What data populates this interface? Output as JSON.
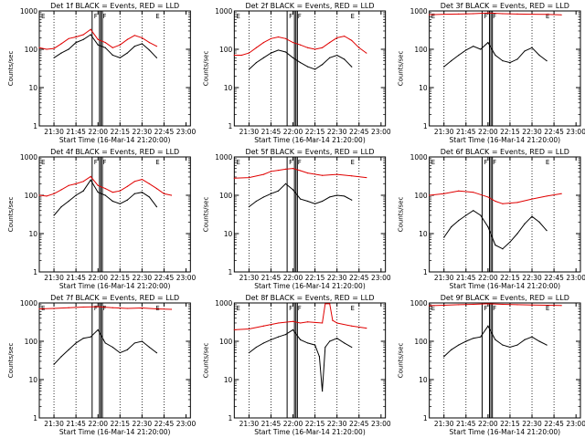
{
  "chart_data": [
    {
      "type": "line",
      "title": "Det 1f BLACK = Events, RED = LLD",
      "xlabel": "Start Time (16-Mar-14 21:20:00)",
      "ylabel": "Counts/sec",
      "y_scale": "log",
      "ylim": [
        1,
        1000
      ],
      "y_ticks": [
        "1",
        "10",
        "100",
        "1000"
      ],
      "x_ticks": [
        "21:30",
        "21:45",
        "22:00",
        "22:15",
        "22:30",
        "22:45",
        "23:00"
      ],
      "markers": [
        "E",
        "F",
        "F",
        "E"
      ],
      "series": [
        {
          "name": "BLACK",
          "color": "#000000",
          "x": [
            "21:30",
            "21:35",
            "21:40",
            "21:45",
            "21:50",
            "21:55",
            "22:00",
            "22:05",
            "22:10",
            "22:15",
            "22:20",
            "22:25",
            "22:30",
            "22:35",
            "22:40"
          ],
          "values": [
            60,
            80,
            100,
            150,
            180,
            240,
            130,
            110,
            70,
            60,
            80,
            120,
            140,
            95,
            60
          ]
        },
        {
          "name": "RED",
          "color": "#e00000",
          "x": [
            "21:20",
            "21:25",
            "21:30",
            "21:35",
            "21:40",
            "21:45",
            "21:50",
            "21:55",
            "22:00",
            "22:05",
            "22:10",
            "22:15",
            "22:20",
            "22:25",
            "22:30",
            "22:35",
            "22:40"
          ],
          "values": [
            110,
            100,
            105,
            140,
            190,
            210,
            240,
            330,
            180,
            150,
            110,
            130,
            180,
            230,
            200,
            150,
            120
          ]
        }
      ]
    },
    {
      "type": "line",
      "title": "Det 2f BLACK = Events, RED = LLD",
      "xlabel": "Start Time (16-Mar-14 21:20:00)",
      "ylabel": "Counts/sec",
      "y_scale": "log",
      "ylim": [
        1,
        1000
      ],
      "y_ticks": [
        "1",
        "10",
        "100",
        "1000"
      ],
      "x_ticks": [
        "21:30",
        "21:45",
        "22:00",
        "22:15",
        "22:30",
        "22:45",
        "23:00"
      ],
      "markers": [
        "E",
        "F",
        "F",
        "E"
      ],
      "series": [
        {
          "name": "BLACK",
          "color": "#000000",
          "x": [
            "21:30",
            "21:35",
            "21:40",
            "21:45",
            "21:50",
            "21:55",
            "22:00",
            "22:05",
            "22:10",
            "22:15",
            "22:20",
            "22:25",
            "22:30",
            "22:35",
            "22:40"
          ],
          "values": [
            30,
            45,
            60,
            80,
            95,
            85,
            60,
            45,
            35,
            30,
            40,
            60,
            70,
            55,
            35
          ]
        },
        {
          "name": "RED",
          "color": "#e00000",
          "x": [
            "21:20",
            "21:25",
            "21:30",
            "21:35",
            "21:40",
            "21:45",
            "21:50",
            "21:55",
            "22:00",
            "22:05",
            "22:10",
            "22:15",
            "22:20",
            "22:25",
            "22:30",
            "22:35",
            "22:40",
            "22:45",
            "22:50"
          ],
          "values": [
            70,
            70,
            80,
            110,
            150,
            190,
            210,
            190,
            150,
            130,
            110,
            100,
            110,
            150,
            200,
            220,
            170,
            110,
            80
          ]
        }
      ]
    },
    {
      "type": "line",
      "title": "Det 3f BLACK = Events, RED = LLD",
      "xlabel": "Start Time (16-Mar-14 21:20:00)",
      "ylabel": "Counts/sec",
      "y_scale": "log",
      "ylim": [
        1,
        1000
      ],
      "y_ticks": [
        "1",
        "10",
        "100",
        "1000"
      ],
      "x_ticks": [
        "21:30",
        "21:45",
        "22:00",
        "22:15",
        "22:30",
        "22:45",
        "23:00"
      ],
      "markers": [
        "E",
        "F",
        "F",
        "E"
      ],
      "series": [
        {
          "name": "BLACK",
          "color": "#000000",
          "x": [
            "21:30",
            "21:35",
            "21:40",
            "21:45",
            "21:50",
            "21:55",
            "22:00",
            "22:05",
            "22:10",
            "22:15",
            "22:20",
            "22:25",
            "22:30",
            "22:35",
            "22:40"
          ],
          "values": [
            35,
            50,
            70,
            95,
            120,
            100,
            150,
            70,
            50,
            45,
            55,
            90,
            110,
            70,
            50
          ]
        },
        {
          "name": "RED",
          "color": "#e00000",
          "x": [
            "21:20",
            "21:30",
            "21:40",
            "21:50",
            "22:00",
            "22:10",
            "22:20",
            "22:30",
            "22:40",
            "22:50"
          ],
          "values": [
            800,
            820,
            830,
            850,
            880,
            850,
            830,
            820,
            810,
            790
          ]
        }
      ]
    },
    {
      "type": "line",
      "title": "Det 4f BLACK = Events, RED = LLD",
      "xlabel": "Start Time (16-Mar-14 21:20:00)",
      "ylabel": "Counts/sec",
      "y_scale": "log",
      "ylim": [
        1,
        1000
      ],
      "y_ticks": [
        "1",
        "10",
        "100",
        "1000"
      ],
      "x_ticks": [
        "21:30",
        "21:45",
        "22:00",
        "22:15",
        "22:30",
        "22:45",
        "23:00"
      ],
      "markers": [
        "E",
        "F",
        "F",
        "E"
      ],
      "series": [
        {
          "name": "BLACK",
          "color": "#000000",
          "x": [
            "21:30",
            "21:35",
            "21:40",
            "21:45",
            "21:50",
            "21:55",
            "22:00",
            "22:05",
            "22:10",
            "22:15",
            "22:20",
            "22:25",
            "22:30",
            "22:35",
            "22:40"
          ],
          "values": [
            30,
            50,
            70,
            100,
            130,
            250,
            120,
            100,
            70,
            60,
            75,
            110,
            120,
            90,
            50
          ]
        },
        {
          "name": "RED",
          "color": "#e00000",
          "x": [
            "21:20",
            "21:25",
            "21:30",
            "21:35",
            "21:40",
            "21:45",
            "21:50",
            "21:55",
            "22:00",
            "22:05",
            "22:10",
            "22:15",
            "22:20",
            "22:25",
            "22:30",
            "22:35",
            "22:40",
            "22:45",
            "22:50"
          ],
          "values": [
            100,
            95,
            110,
            140,
            180,
            200,
            230,
            310,
            180,
            150,
            120,
            130,
            170,
            230,
            260,
            200,
            150,
            110,
            100
          ]
        }
      ]
    },
    {
      "type": "line",
      "title": "Det 5f BLACK = Events, RED = LLD",
      "xlabel": "Start Time (16-Mar-14 21:20:00)",
      "ylabel": "Counts/sec",
      "y_scale": "log",
      "ylim": [
        1,
        1000
      ],
      "y_ticks": [
        "1",
        "10",
        "100",
        "1000"
      ],
      "x_ticks": [
        "21:30",
        "21:45",
        "22:00",
        "22:15",
        "22:30",
        "22:45",
        "23:00"
      ],
      "markers": [
        "E",
        "F",
        "F",
        "E"
      ],
      "series": [
        {
          "name": "BLACK",
          "color": "#000000",
          "x": [
            "21:30",
            "21:35",
            "21:40",
            "21:45",
            "21:50",
            "21:55",
            "22:00",
            "22:05",
            "22:10",
            "22:15",
            "22:20",
            "22:25",
            "22:30",
            "22:35",
            "22:40"
          ],
          "values": [
            50,
            70,
            90,
            110,
            130,
            200,
            140,
            80,
            70,
            60,
            70,
            90,
            100,
            95,
            75
          ]
        },
        {
          "name": "RED",
          "color": "#e00000",
          "x": [
            "21:20",
            "21:30",
            "21:40",
            "21:45",
            "21:50",
            "21:55",
            "22:00",
            "22:05",
            "22:10",
            "22:20",
            "22:30",
            "22:40",
            "22:50"
          ],
          "values": [
            280,
            290,
            350,
            420,
            450,
            480,
            500,
            440,
            380,
            330,
            350,
            320,
            290
          ]
        }
      ]
    },
    {
      "type": "line",
      "title": "Det 6f BLACK = Events, RED = LLD",
      "xlabel": "Start Time (16-Mar-14 21:20:00)",
      "ylabel": "Counts/sec",
      "y_scale": "log",
      "ylim": [
        1,
        1000
      ],
      "y_ticks": [
        "1",
        "10",
        "100",
        "1000"
      ],
      "x_ticks": [
        "21:30",
        "21:45",
        "22:00",
        "22:15",
        "22:30",
        "22:45",
        "23:00"
      ],
      "markers": [
        "E",
        "F",
        "F",
        "E"
      ],
      "series": [
        {
          "name": "BLACK",
          "color": "#000000",
          "x": [
            "21:30",
            "21:35",
            "21:40",
            "21:45",
            "21:50",
            "21:55",
            "22:00",
            "22:05",
            "22:10",
            "22:15",
            "22:20",
            "22:25",
            "22:30",
            "22:35",
            "22:40"
          ],
          "values": [
            8,
            15,
            22,
            30,
            40,
            30,
            15,
            5,
            4,
            6,
            10,
            18,
            28,
            20,
            12
          ]
        },
        {
          "name": "RED",
          "color": "#e00000",
          "x": [
            "21:20",
            "21:30",
            "21:40",
            "21:50",
            "22:00",
            "22:05",
            "22:10",
            "22:20",
            "22:30",
            "22:40",
            "22:50"
          ],
          "values": [
            100,
            110,
            130,
            120,
            90,
            70,
            60,
            65,
            80,
            95,
            110
          ]
        }
      ]
    },
    {
      "type": "line",
      "title": "Det 7f BLACK = Events, RED = LLD",
      "xlabel": "Start Time (16-Mar-14 21:20:00)",
      "ylabel": "Counts/sec",
      "y_scale": "log",
      "ylim": [
        1,
        1000
      ],
      "y_ticks": [
        "1",
        "10",
        "100",
        "1000"
      ],
      "x_ticks": [
        "21:30",
        "21:45",
        "22:00",
        "22:15",
        "22:30",
        "22:45",
        "23:00"
      ],
      "markers": [
        "E",
        "F",
        "F",
        "E"
      ],
      "series": [
        {
          "name": "BLACK",
          "color": "#000000",
          "x": [
            "21:30",
            "21:35",
            "21:40",
            "21:45",
            "21:50",
            "21:55",
            "22:00",
            "22:05",
            "22:10",
            "22:15",
            "22:20",
            "22:25",
            "22:30",
            "22:35",
            "22:40"
          ],
          "values": [
            25,
            40,
            60,
            90,
            120,
            130,
            200,
            90,
            70,
            50,
            60,
            90,
            100,
            70,
            50
          ]
        },
        {
          "name": "RED",
          "color": "#e00000",
          "x": [
            "21:20",
            "21:30",
            "21:40",
            "21:50",
            "22:00",
            "22:10",
            "22:20",
            "22:30",
            "22:40",
            "22:50"
          ],
          "values": [
            700,
            720,
            750,
            780,
            800,
            750,
            720,
            740,
            700,
            680
          ]
        }
      ]
    },
    {
      "type": "line",
      "title": "Det 8f BLACK = Events, RED = LLD",
      "xlabel": "Start Time (16-Mar-14 21:20:00)",
      "ylabel": "Counts/sec",
      "y_scale": "log",
      "ylim": [
        1,
        1000
      ],
      "y_ticks": [
        "1",
        "10",
        "100",
        "1000"
      ],
      "x_ticks": [
        "21:30",
        "21:45",
        "22:00",
        "22:15",
        "22:30",
        "22:45",
        "23:00"
      ],
      "markers": [
        "E",
        "F",
        "F",
        "E"
      ],
      "series": [
        {
          "name": "BLACK",
          "color": "#000000",
          "x": [
            "21:30",
            "21:35",
            "21:40",
            "21:45",
            "21:50",
            "21:55",
            "22:00",
            "22:05",
            "22:10",
            "22:15",
            "22:18",
            "22:20",
            "22:22",
            "22:25",
            "22:30",
            "22:35",
            "22:40"
          ],
          "values": [
            50,
            70,
            90,
            110,
            130,
            150,
            200,
            110,
            90,
            80,
            40,
            5,
            70,
            100,
            120,
            90,
            70
          ]
        },
        {
          "name": "RED",
          "color": "#e00000",
          "x": [
            "21:20",
            "21:30",
            "21:40",
            "21:50",
            "22:00",
            "22:05",
            "22:10",
            "22:15",
            "22:20",
            "22:22",
            "22:25",
            "22:27",
            "22:30",
            "22:40",
            "22:50"
          ],
          "values": [
            200,
            210,
            250,
            300,
            330,
            300,
            320,
            310,
            300,
            950,
            950,
            350,
            300,
            250,
            220
          ]
        }
      ]
    },
    {
      "type": "line",
      "title": "Det 9f BLACK = Events, RED = LLD",
      "xlabel": "Start Time (16-Mar-14 21:20:00)",
      "ylabel": "Counts/sec",
      "y_scale": "log",
      "ylim": [
        1,
        1000
      ],
      "y_ticks": [
        "1",
        "10",
        "100",
        "1000"
      ],
      "x_ticks": [
        "21:30",
        "21:45",
        "22:00",
        "22:15",
        "22:30",
        "22:45",
        "23:00"
      ],
      "markers": [
        "E",
        "F",
        "F",
        "E"
      ],
      "series": [
        {
          "name": "BLACK",
          "color": "#000000",
          "x": [
            "21:30",
            "21:35",
            "21:40",
            "21:45",
            "21:50",
            "21:55",
            "22:00",
            "22:05",
            "22:10",
            "22:15",
            "22:20",
            "22:25",
            "22:30",
            "22:35",
            "22:40"
          ],
          "values": [
            40,
            60,
            80,
            100,
            120,
            130,
            250,
            110,
            80,
            70,
            80,
            110,
            130,
            100,
            80
          ]
        },
        {
          "name": "RED",
          "color": "#e00000",
          "x": [
            "21:20",
            "21:30",
            "21:40",
            "21:50",
            "22:00",
            "22:10",
            "22:20",
            "22:30",
            "22:40",
            "22:50"
          ],
          "values": [
            850,
            870,
            900,
            920,
            950,
            920,
            900,
            880,
            870,
            860
          ]
        }
      ]
    }
  ]
}
